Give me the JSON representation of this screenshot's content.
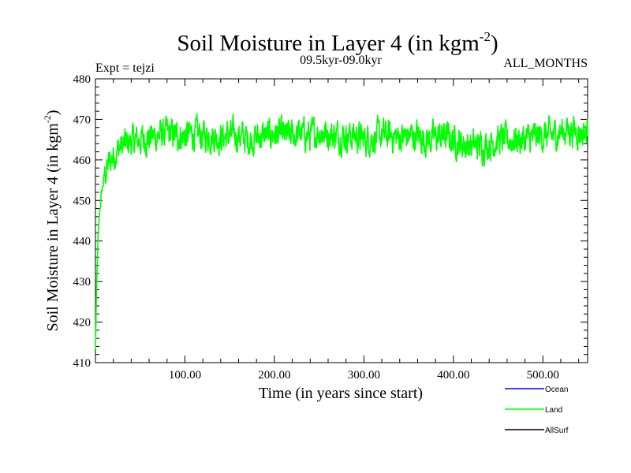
{
  "chart_data": {
    "type": "line",
    "title_main": "Soil Moisture in Layer 4 (in kgm",
    "title_exp": "-2",
    "title_close": ")",
    "expt_label": "Expt = tejzi",
    "period_label": "09.5kyr-09.0kyr",
    "months_label": "ALL_MONTHS",
    "xlabel": "Time (in years since start)",
    "ylabel_main": "Soil Moisture in Layer 4 (in kgm",
    "ylabel_exp": "-2",
    "ylabel_close": ")",
    "xlim": [
      0,
      550
    ],
    "ylim": [
      410,
      480
    ],
    "xticks": [
      100,
      200,
      300,
      400,
      500
    ],
    "xtick_labels": [
      "100.00",
      "200.00",
      "300.00",
      "400.00",
      "500.00"
    ],
    "yticks": [
      410,
      420,
      430,
      440,
      450,
      460,
      470,
      480
    ],
    "ytick_labels": [
      "410",
      "420",
      "430",
      "440",
      "450",
      "460",
      "470",
      "480"
    ],
    "legend_placement": "bottom-right",
    "series": [
      {
        "name": "Ocean",
        "color": "#0000ff",
        "values": []
      },
      {
        "name": "Land",
        "color": "#00ff00",
        "x": [
          0,
          1,
          2,
          3,
          5,
          7,
          10,
          15,
          20,
          25,
          30,
          40,
          50,
          60,
          70,
          80,
          90,
          100,
          110,
          120,
          130,
          140,
          150,
          160,
          170,
          180,
          190,
          200,
          210,
          220,
          230,
          240,
          250,
          260,
          270,
          280,
          290,
          300,
          310,
          320,
          330,
          340,
          350,
          360,
          370,
          380,
          390,
          400,
          410,
          420,
          430,
          440,
          450,
          460,
          470,
          480,
          490,
          500,
          510,
          520,
          530,
          540,
          550
        ],
        "values": [
          413,
          425,
          434,
          441,
          448,
          452,
          456,
          459,
          461,
          462.5,
          463.5,
          464.5,
          465,
          465.5,
          466,
          466.5,
          466,
          466,
          466.5,
          466,
          466,
          465.5,
          466,
          466,
          465,
          465.5,
          466,
          466.5,
          466,
          466,
          466.5,
          466,
          467,
          466.5,
          466,
          466,
          466,
          465,
          465.5,
          466,
          466,
          465.5,
          466,
          466,
          465,
          465.5,
          466,
          465,
          464,
          463.5,
          463.5,
          464,
          465,
          465,
          465,
          465,
          465.5,
          466,
          466,
          467,
          467.5,
          467,
          466.5
        ]
      },
      {
        "name": "AllSurf",
        "color": "#000000",
        "values": []
      }
    ]
  }
}
